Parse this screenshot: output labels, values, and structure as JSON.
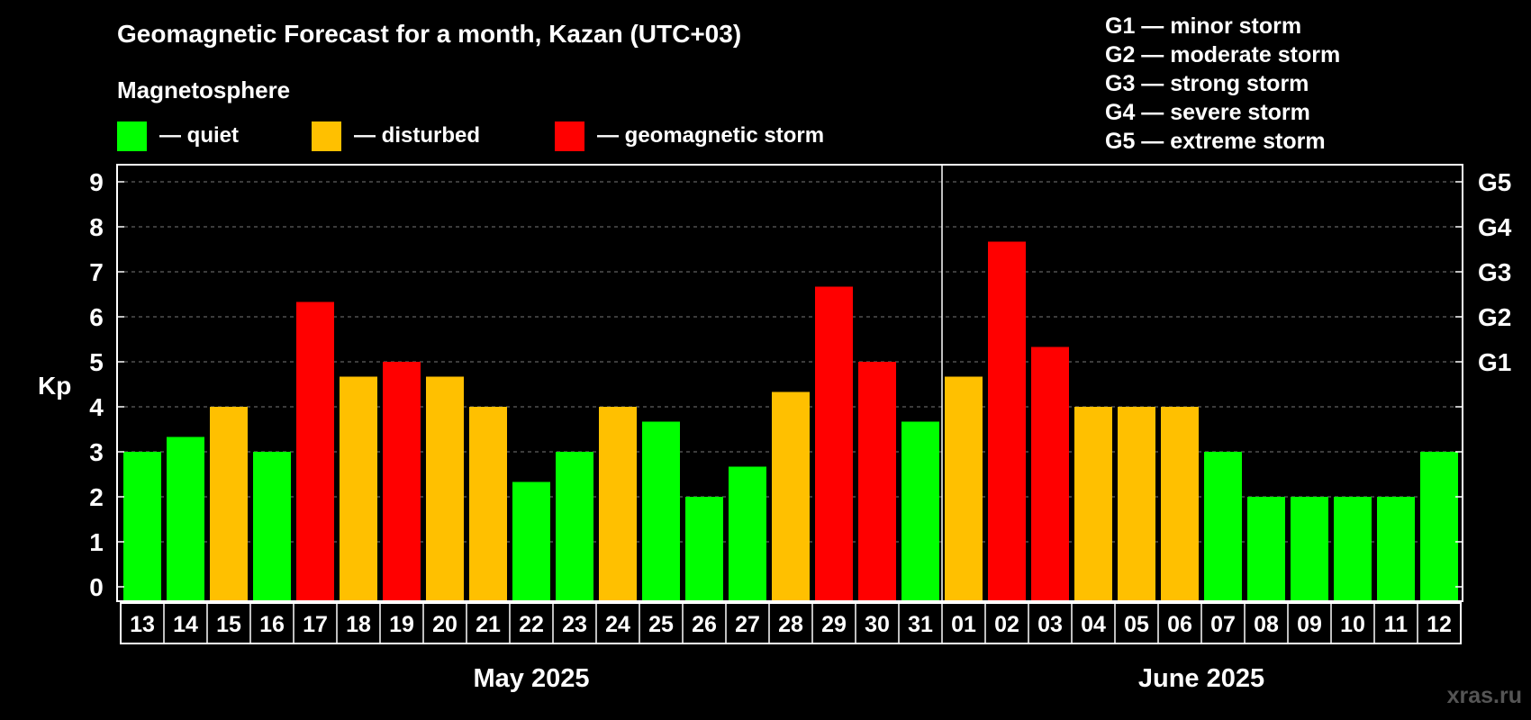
{
  "chart_data": {
    "type": "bar",
    "title": "Geomagnetic Forecast for a month, Kazan (UTC+03)",
    "legend": {
      "heading": "Magnetosphere",
      "items": [
        {
          "label": "— quiet",
          "color": "#00ff00"
        },
        {
          "label": "— disturbed",
          "color": "#ffc000"
        },
        {
          "label": "— geomagnetic storm",
          "color": "#ff0000"
        }
      ]
    },
    "storm_scale": [
      "G1 — minor storm",
      "G2 — moderate storm",
      "G3 — strong storm",
      "G4 — severe storm",
      "G5 — extreme storm"
    ],
    "ylabel": "Kp",
    "ylim": [
      0,
      9
    ],
    "y_ticks": [
      "0",
      "1",
      "2",
      "3",
      "4",
      "5",
      "6",
      "7",
      "8",
      "9"
    ],
    "right_ticks": [
      {
        "value": 5,
        "label": "G1"
      },
      {
        "value": 6,
        "label": "G2"
      },
      {
        "value": 7,
        "label": "G3"
      },
      {
        "value": 8,
        "label": "G4"
      },
      {
        "value": 9,
        "label": "G5"
      }
    ],
    "categories": [
      "13",
      "14",
      "15",
      "16",
      "17",
      "18",
      "19",
      "20",
      "21",
      "22",
      "23",
      "24",
      "25",
      "26",
      "27",
      "28",
      "29",
      "30",
      "31",
      "01",
      "02",
      "03",
      "04",
      "05",
      "06",
      "07",
      "08",
      "09",
      "10",
      "11",
      "12"
    ],
    "values": [
      3,
      3.33,
      4,
      3,
      6.33,
      4.67,
      5,
      4.67,
      4,
      2.33,
      3,
      4,
      3.67,
      2,
      2.67,
      4.33,
      6.67,
      5,
      3.67,
      4.67,
      7.67,
      5.33,
      4,
      4,
      4,
      3,
      2,
      2,
      2,
      2,
      3
    ],
    "months": [
      {
        "label": "May 2025",
        "first_index": 0,
        "last_index": 18
      },
      {
        "label": "June 2025",
        "first_index": 19,
        "last_index": 30
      }
    ],
    "colors": {
      "quiet": "#00ff00",
      "disturbed": "#ffc000",
      "storm": "#ff0000"
    },
    "thresholds": {
      "disturbed": 4,
      "storm": 5
    }
  },
  "watermark": "xras.ru"
}
